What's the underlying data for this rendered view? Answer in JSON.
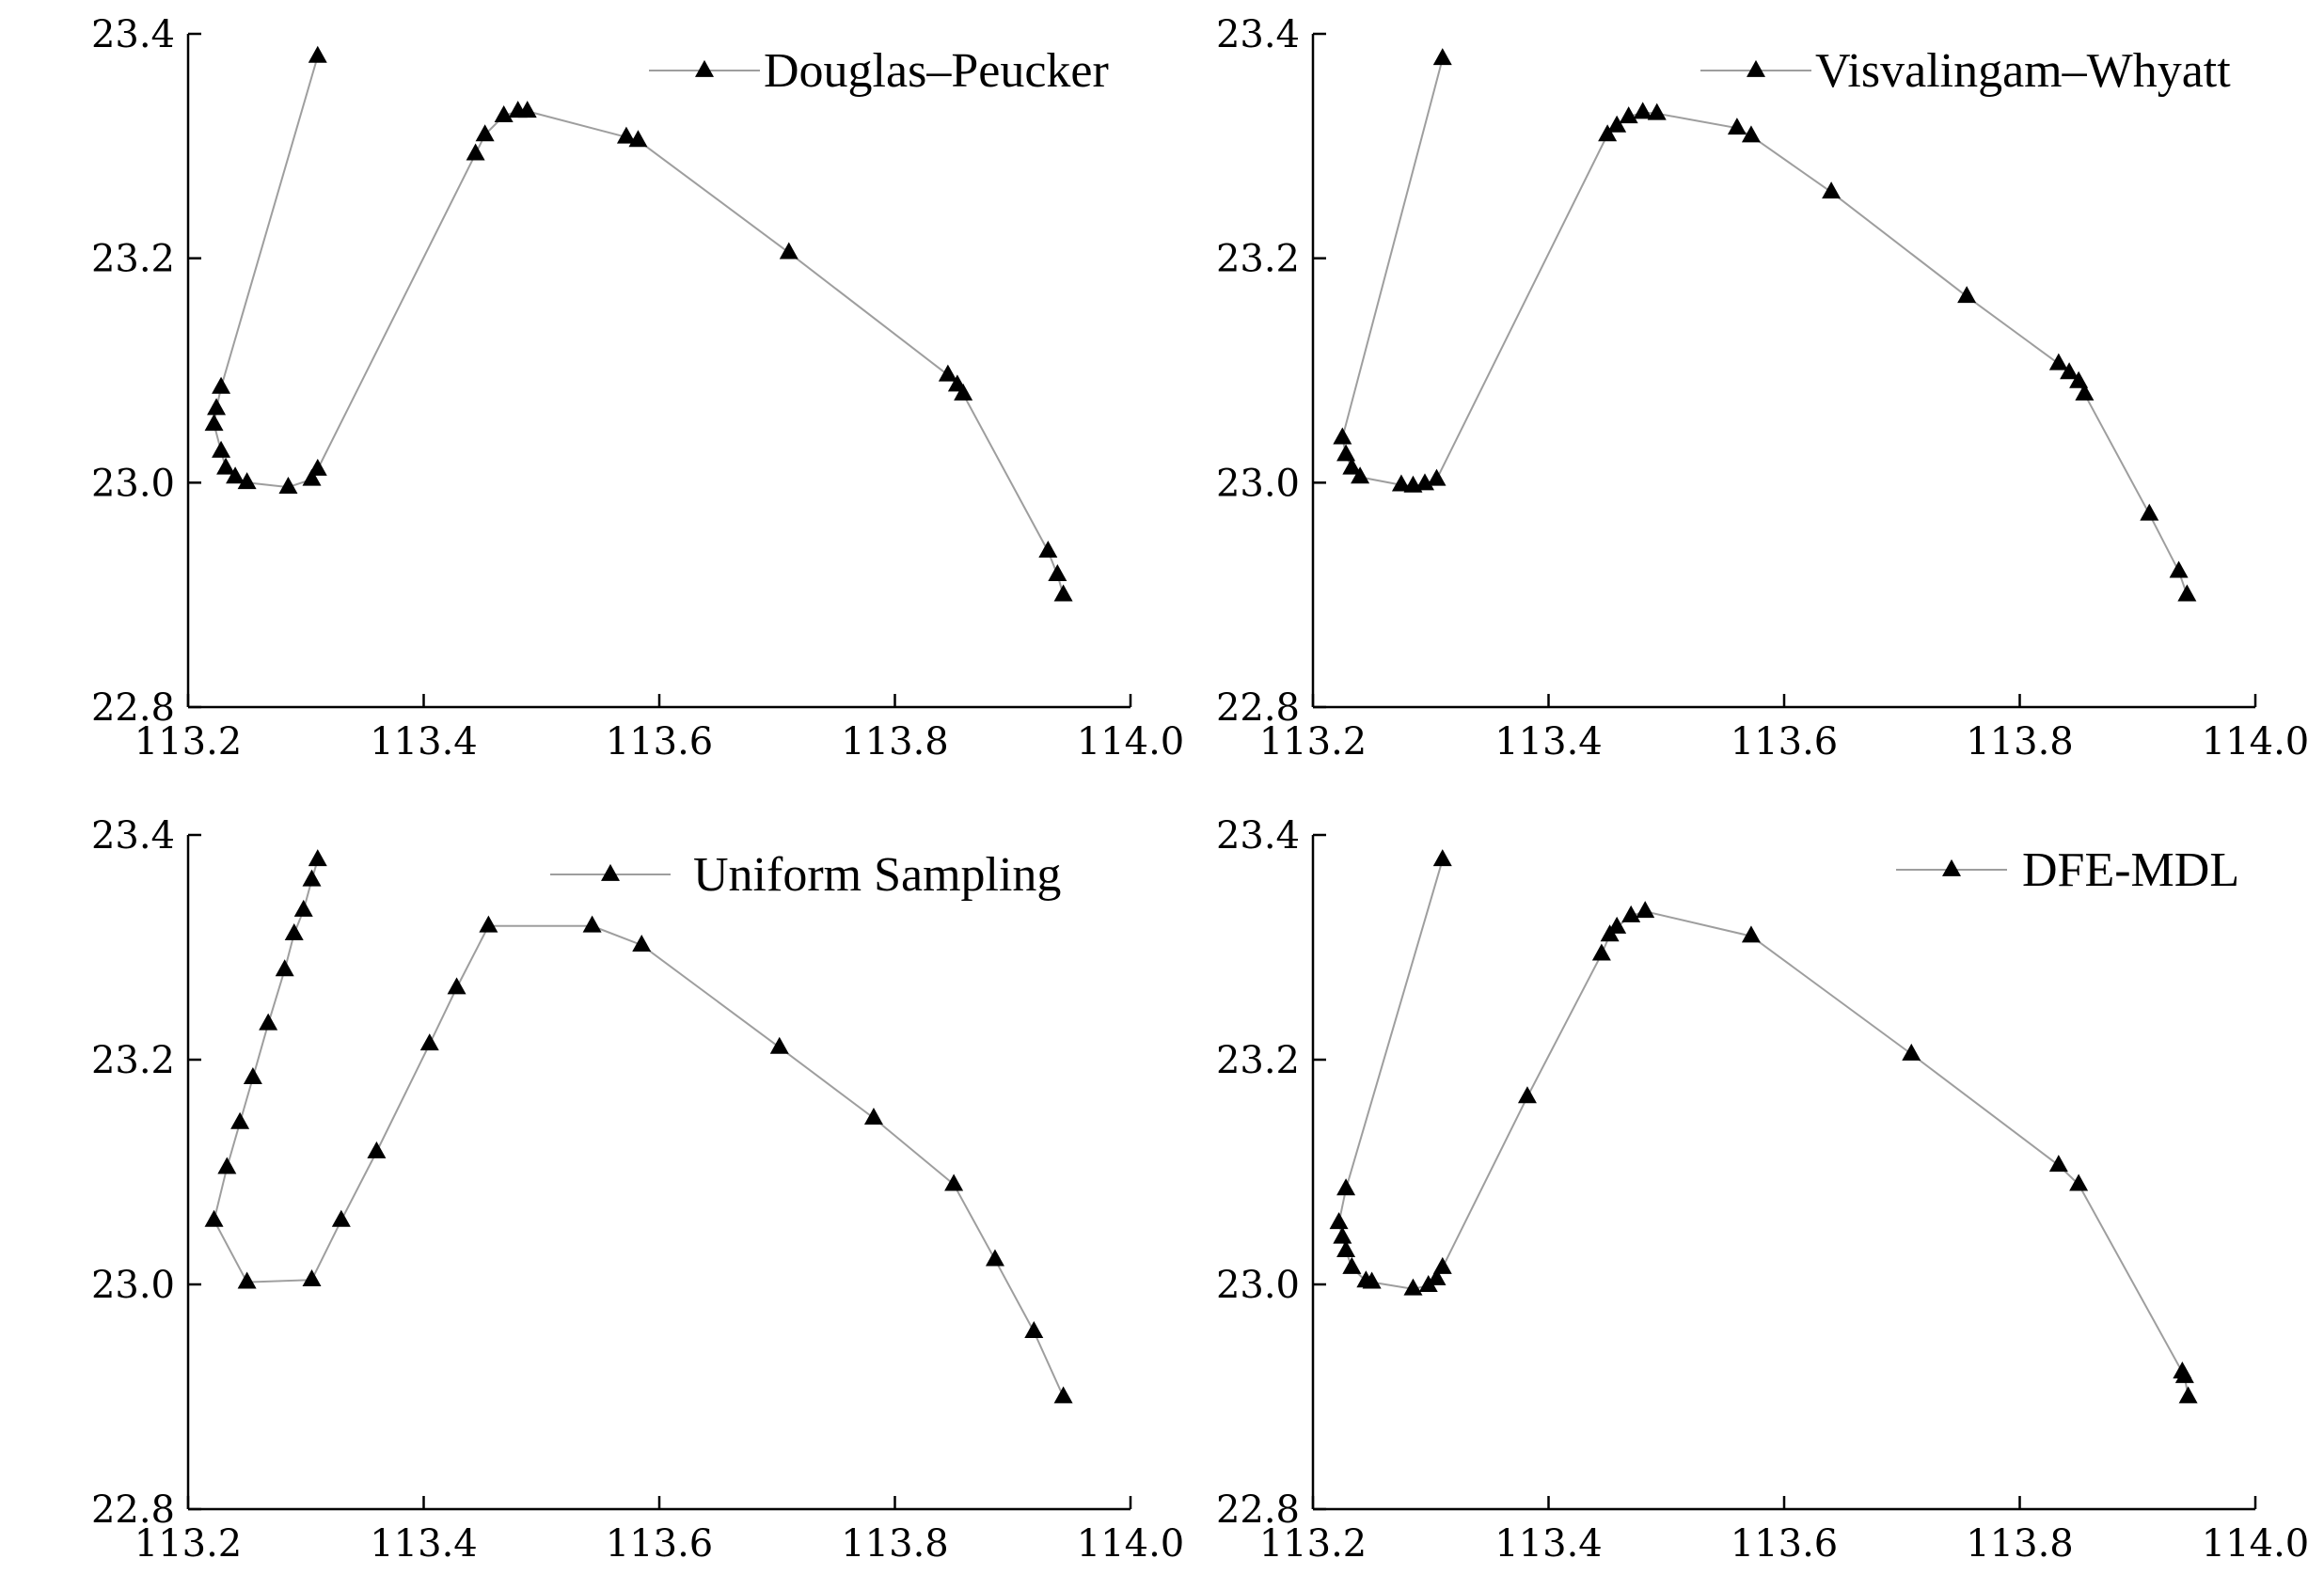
{
  "chart_data": [
    {
      "type": "line",
      "legend": "Douglas–Peucker",
      "legend_position": "top-right",
      "xlim": [
        113.2,
        114.0
      ],
      "ylim": [
        22.8,
        23.4
      ],
      "x_ticks": [
        "113.2",
        "113.4",
        "113.6",
        "113.8",
        "114.0"
      ],
      "y_ticks": [
        "22.8",
        "23.0",
        "23.2",
        "23.4"
      ],
      "points": [
        [
          113.31,
          23.38
        ],
        [
          113.228,
          23.085
        ],
        [
          113.224,
          23.066
        ],
        [
          113.222,
          23.052
        ],
        [
          113.228,
          23.028
        ],
        [
          113.232,
          23.013
        ],
        [
          113.24,
          23.005
        ],
        [
          113.25,
          23.0
        ],
        [
          113.285,
          22.996
        ],
        [
          113.305,
          23.003
        ],
        [
          113.31,
          23.012
        ],
        [
          113.444,
          23.293
        ],
        [
          113.452,
          23.31
        ],
        [
          113.468,
          23.327
        ],
        [
          113.48,
          23.331
        ],
        [
          113.488,
          23.331
        ],
        [
          113.572,
          23.308
        ],
        [
          113.582,
          23.305
        ],
        [
          113.71,
          23.205
        ],
        [
          113.845,
          23.096
        ],
        [
          113.853,
          23.087
        ],
        [
          113.858,
          23.079
        ],
        [
          113.93,
          22.939
        ],
        [
          113.938,
          22.918
        ],
        [
          113.943,
          22.9
        ]
      ]
    },
    {
      "type": "line",
      "legend": "Visvalingam–Whyatt",
      "legend_position": "top-right",
      "xlim": [
        113.2,
        114.0
      ],
      "ylim": [
        22.8,
        23.4
      ],
      "x_ticks": [
        "113.2",
        "113.4",
        "113.6",
        "113.8",
        "114.0"
      ],
      "y_ticks": [
        "22.8",
        "23.0",
        "23.2",
        "23.4"
      ],
      "points": [
        [
          113.31,
          23.378
        ],
        [
          113.225,
          23.04
        ],
        [
          113.228,
          23.025
        ],
        [
          113.233,
          23.013
        ],
        [
          113.24,
          23.005
        ],
        [
          113.275,
          22.998
        ],
        [
          113.285,
          22.997
        ],
        [
          113.295,
          22.999
        ],
        [
          113.305,
          23.003
        ],
        [
          113.45,
          23.31
        ],
        [
          113.458,
          23.318
        ],
        [
          113.468,
          23.326
        ],
        [
          113.48,
          23.33
        ],
        [
          113.492,
          23.329
        ],
        [
          113.56,
          23.316
        ],
        [
          113.572,
          23.309
        ],
        [
          113.64,
          23.259
        ],
        [
          113.755,
          23.166
        ],
        [
          113.833,
          23.106
        ],
        [
          113.842,
          23.098
        ],
        [
          113.85,
          23.09
        ],
        [
          113.855,
          23.079
        ],
        [
          113.91,
          22.972
        ],
        [
          113.935,
          22.921
        ],
        [
          113.942,
          22.9
        ]
      ]
    },
    {
      "type": "line",
      "legend": "Uniform Sampling",
      "legend_position": "top-right",
      "xlim": [
        113.2,
        114.0
      ],
      "ylim": [
        22.8,
        23.4
      ],
      "x_ticks": [
        "113.2",
        "113.4",
        "113.6",
        "113.8",
        "114.0"
      ],
      "y_ticks": [
        "22.8",
        "23.0",
        "23.2",
        "23.4"
      ],
      "points": [
        [
          113.31,
          23.378
        ],
        [
          113.305,
          23.36
        ],
        [
          113.298,
          23.333
        ],
        [
          113.29,
          23.312
        ],
        [
          113.282,
          23.28
        ],
        [
          113.268,
          23.232
        ],
        [
          113.255,
          23.184
        ],
        [
          113.244,
          23.144
        ],
        [
          113.233,
          23.104
        ],
        [
          113.222,
          23.057
        ],
        [
          113.25,
          23.002
        ],
        [
          113.305,
          23.004
        ],
        [
          113.33,
          23.057
        ],
        [
          113.36,
          23.118
        ],
        [
          113.405,
          23.214
        ],
        [
          113.428,
          23.264
        ],
        [
          113.455,
          23.319
        ],
        [
          113.543,
          23.319
        ],
        [
          113.585,
          23.302
        ],
        [
          113.702,
          23.211
        ],
        [
          113.782,
          23.148
        ],
        [
          113.85,
          23.089
        ],
        [
          113.885,
          23.022
        ],
        [
          113.918,
          22.958
        ],
        [
          113.943,
          22.9
        ]
      ]
    },
    {
      "type": "line",
      "legend": "DFE-MDL",
      "legend_position": "top-right",
      "xlim": [
        113.2,
        114.0
      ],
      "ylim": [
        22.8,
        23.4
      ],
      "x_ticks": [
        "113.2",
        "113.4",
        "113.6",
        "113.8",
        "114.0"
      ],
      "y_ticks": [
        "22.8",
        "23.0",
        "23.2",
        "23.4"
      ],
      "points": [
        [
          113.31,
          23.378
        ],
        [
          113.228,
          23.085
        ],
        [
          113.222,
          23.055
        ],
        [
          113.225,
          23.042
        ],
        [
          113.228,
          23.03
        ],
        [
          113.233,
          23.015
        ],
        [
          113.245,
          23.003
        ],
        [
          113.25,
          23.002
        ],
        [
          113.285,
          22.996
        ],
        [
          113.298,
          22.999
        ],
        [
          113.305,
          23.005
        ],
        [
          113.31,
          23.015
        ],
        [
          113.382,
          23.167
        ],
        [
          113.445,
          23.294
        ],
        [
          113.452,
          23.311
        ],
        [
          113.458,
          23.318
        ],
        [
          113.47,
          23.328
        ],
        [
          113.482,
          23.332
        ],
        [
          113.572,
          23.31
        ],
        [
          113.708,
          23.205
        ],
        [
          113.833,
          23.106
        ],
        [
          113.85,
          23.089
        ],
        [
          113.938,
          22.922
        ],
        [
          113.94,
          22.918
        ],
        [
          113.943,
          22.9
        ]
      ]
    }
  ]
}
